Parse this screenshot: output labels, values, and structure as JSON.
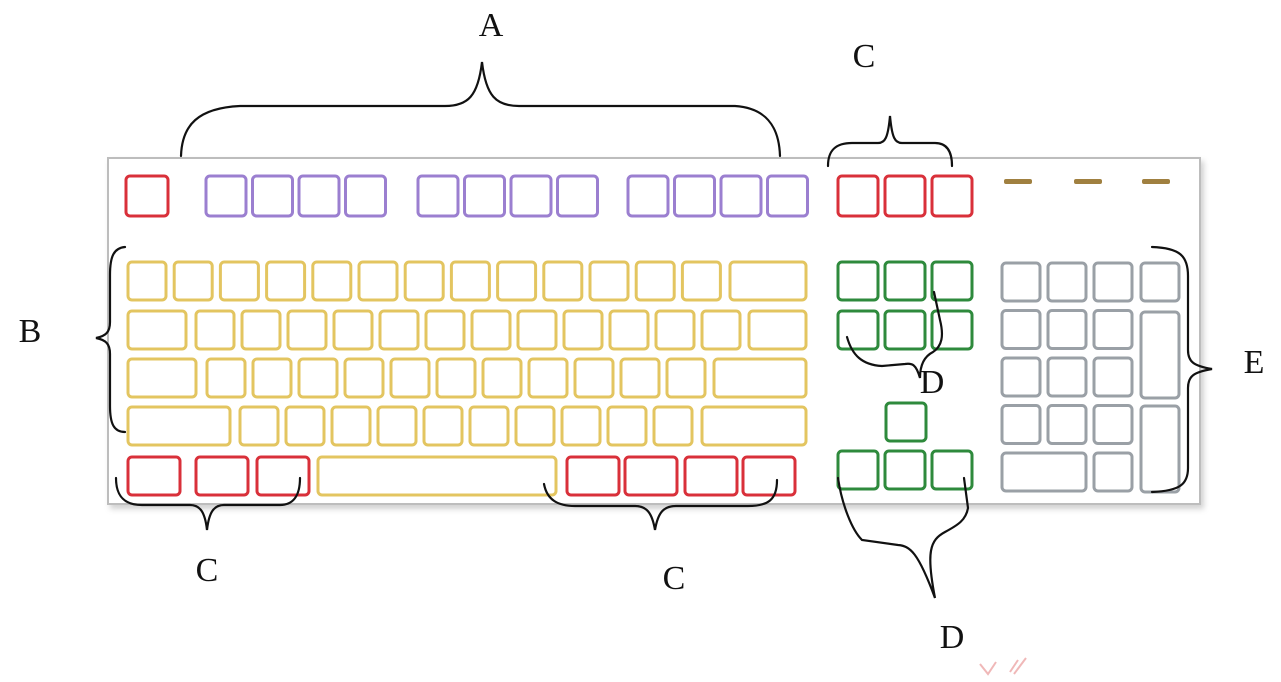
{
  "labels": {
    "a": "A",
    "b": "B",
    "c_top": "C",
    "c_bottom_left": "C",
    "c_bottom_right": "C",
    "d_upper": "D",
    "d_lower": "D",
    "e": "E"
  },
  "colors": {
    "function_keys": "#9b7fd0",
    "special_keys": "#d9303a",
    "main_keys": "#e3c560",
    "cursor_keys": "#2e8a3c",
    "numeric_keys": "#9aa0a6",
    "indicator_lights": "#a08040",
    "bracket": "#111111",
    "keyboard_border": "#b9b9b9"
  }
}
